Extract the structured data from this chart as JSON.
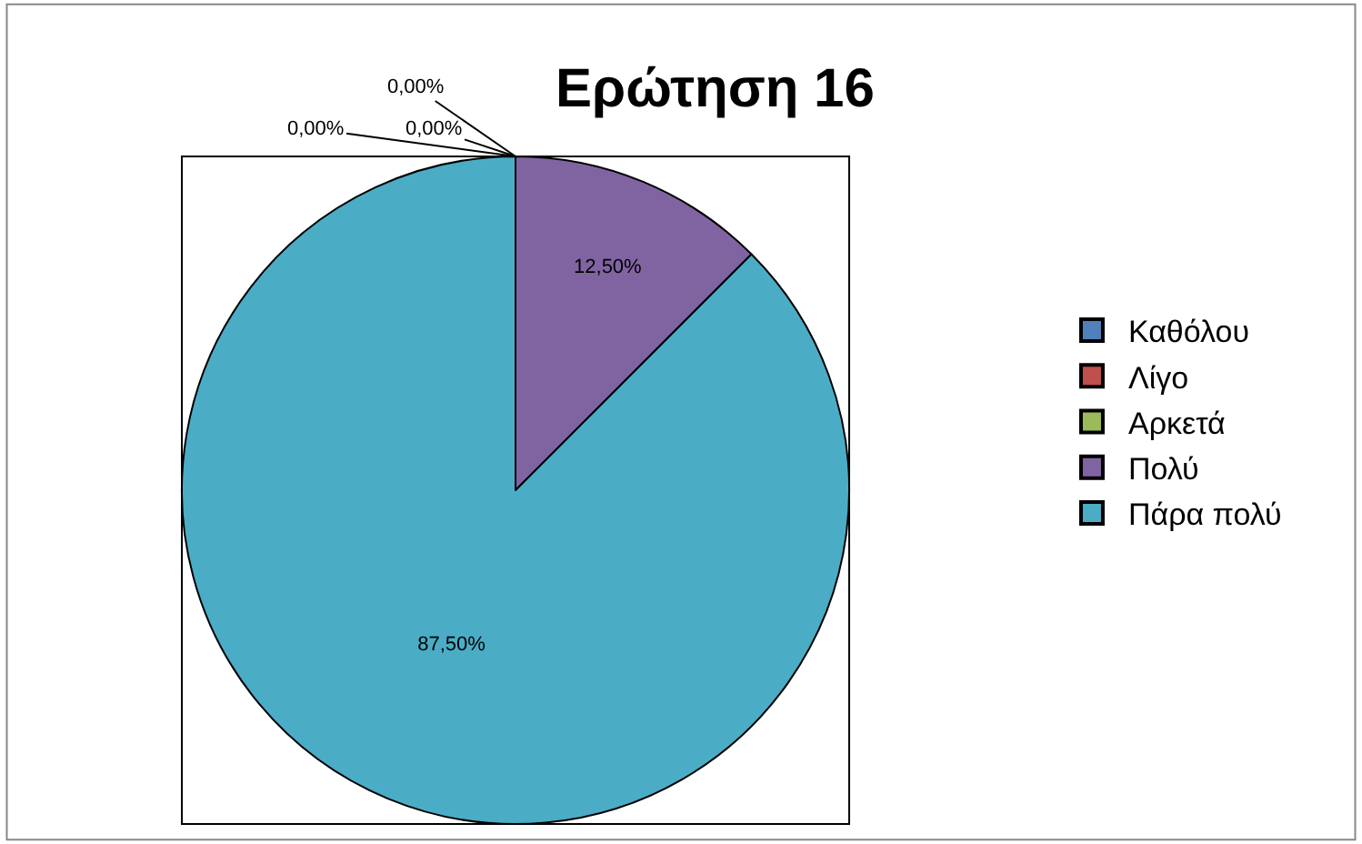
{
  "chart_data": {
    "type": "pie",
    "title": "Ερώτηση 16",
    "categories": [
      "Καθόλου",
      "Λίγο",
      "Αρκετά",
      "Πολύ",
      "Πάρα πολύ"
    ],
    "values": [
      0,
      0,
      0,
      12.5,
      87.5
    ],
    "value_labels": [
      "0,00%",
      "0,00%",
      "0,00%",
      "12,50%",
      "87,50%"
    ],
    "colors": [
      "#4f81bd",
      "#c0504d",
      "#9bbb59",
      "#8064a2",
      "#4bacc6"
    ],
    "legend": "right"
  }
}
